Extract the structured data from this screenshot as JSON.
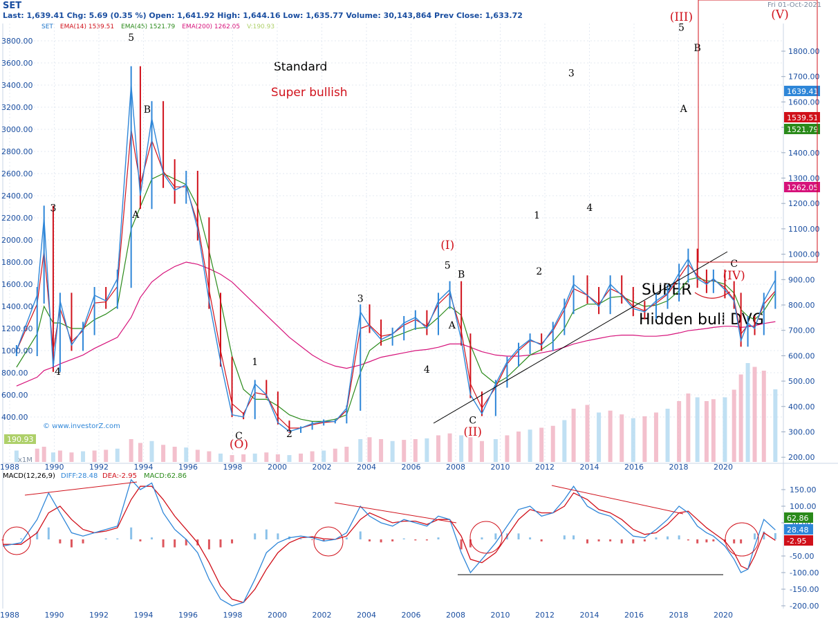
{
  "header": {
    "symbol": "SET",
    "date": "Fri 01-Oct-2021",
    "quote_line": "Last: 1,639.41  Chg: 5.69 (0.35 %)  Open: 1,641.92  High: 1,644.16  Low: 1,635.77  Volume: 30,143,864  Prev Close: 1,633.72",
    "legend": [
      {
        "label": "SET",
        "color": "#1a73c9"
      },
      {
        "label": "EMA(14)",
        "value": "1539.51",
        "color": "#d0101a"
      },
      {
        "label": "EMA(45)",
        "value": "1521.79",
        "color": "#2a8a1a"
      },
      {
        "label": "EMA(200)",
        "value": "1262.05",
        "color": "#d6127a"
      },
      {
        "label": "V:190.93",
        "color": "#aed06a"
      }
    ]
  },
  "watermark": "© www.investorZ.com",
  "volume_badge": "190.93",
  "volume_unit": "x1M",
  "macd_header": {
    "label": "MACD(12,26,9)",
    "diff": "DIFF:28.48",
    "dea": "DEA:-2.95",
    "macd": "MACD:62.86"
  },
  "annotations": {
    "standard": "Standard",
    "super_bullish": "Super bullish",
    "super": "SUPER",
    "hidden_bull": "Hidden bull DVG"
  },
  "chart_data": {
    "type": "line",
    "price_series": {
      "name": "SET",
      "x": [
        1988.6,
        1989.5,
        1989.8,
        1990.2,
        1990.5,
        1991.0,
        1991.5,
        1992.0,
        1992.5,
        1993.0,
        1993.6,
        1994.0,
        1994.5,
        1995.0,
        1995.5,
        1996.0,
        1996.5,
        1997.0,
        1997.5,
        1998.0,
        1998.5,
        1999.0,
        1999.5,
        2000.0,
        2000.5,
        2001.0,
        2001.5,
        2002.0,
        2002.5,
        2003.0,
        2003.6,
        2004.0,
        2004.5,
        2005.0,
        2005.5,
        2006.0,
        2006.5,
        2007.0,
        2007.5,
        2008.0,
        2008.4,
        2008.9,
        2009.5,
        2010.0,
        2010.5,
        2011.0,
        2011.5,
        2012.0,
        2012.5,
        2012.9,
        2013.5,
        2014.0,
        2014.5,
        2015.0,
        2015.5,
        2016.0,
        2016.5,
        2017.0,
        2017.5,
        2017.9,
        2018.3,
        2018.7,
        2019.0,
        2019.5,
        2019.9,
        2020.2,
        2020.5,
        2020.8,
        2021.2,
        2021.7
      ],
      "y": [
        1000,
        1500,
        2200,
        850,
        1450,
        1050,
        1200,
        1500,
        1450,
        1650,
        3400,
        2400,
        3100,
        2600,
        2450,
        2500,
        2100,
        1450,
        900,
        420,
        400,
        700,
        600,
        350,
        270,
        300,
        340,
        360,
        360,
        480,
        1350,
        1220,
        1100,
        1150,
        1250,
        1300,
        1200,
        1450,
        1550,
        1100,
        600,
        430,
        700,
        900,
        1020,
        1100,
        1050,
        1200,
        1400,
        1600,
        1500,
        1400,
        1600,
        1500,
        1380,
        1350,
        1450,
        1520,
        1700,
        1830,
        1650,
        1600,
        1650,
        1550,
        1450,
        1090,
        1250,
        1200,
        1450,
        1639.41
      ]
    },
    "ema14": [
      1000,
      1420,
      1900,
      1000,
      1380,
      1080,
      1180,
      1430,
      1440,
      1580,
      3000,
      2500,
      2900,
      2620,
      2480,
      2480,
      2150,
      1550,
      1000,
      520,
      430,
      620,
      600,
      400,
      300,
      300,
      330,
      350,
      360,
      460,
      1200,
      1230,
      1130,
      1150,
      1230,
      1280,
      1220,
      1420,
      1520,
      1180,
      700,
      480,
      670,
      880,
      1000,
      1090,
      1060,
      1180,
      1370,
      1560,
      1500,
      1420,
      1560,
      1510,
      1400,
      1360,
      1430,
      1510,
      1660,
      1780,
      1680,
      1610,
      1640,
      1570,
      1460,
      1150,
      1230,
      1210,
      1420,
      1539.51
    ],
    "ema45": [
      850,
      1150,
      1400,
      1250,
      1250,
      1200,
      1200,
      1280,
      1330,
      1400,
      2100,
      2300,
      2550,
      2600,
      2550,
      2500,
      2300,
      1900,
      1450,
      950,
      650,
      560,
      560,
      500,
      420,
      380,
      360,
      360,
      380,
      420,
      800,
      1000,
      1080,
      1120,
      1160,
      1200,
      1210,
      1300,
      1400,
      1320,
      1050,
      800,
      700,
      760,
      860,
      960,
      1010,
      1080,
      1200,
      1360,
      1420,
      1420,
      1480,
      1490,
      1440,
      1400,
      1410,
      1450,
      1540,
      1640,
      1660,
      1630,
      1630,
      1600,
      1520,
      1370,
      1310,
      1280,
      1360,
      1521.79
    ],
    "ema200": [
      680,
      760,
      820,
      850,
      880,
      920,
      960,
      1020,
      1070,
      1120,
      1300,
      1480,
      1620,
      1700,
      1760,
      1800,
      1780,
      1740,
      1690,
      1620,
      1520,
      1420,
      1320,
      1220,
      1120,
      1040,
      960,
      900,
      860,
      840,
      870,
      900,
      940,
      960,
      980,
      1000,
      1010,
      1030,
      1060,
      1060,
      1030,
      990,
      960,
      950,
      950,
      960,
      980,
      1000,
      1030,
      1060,
      1090,
      1110,
      1130,
      1140,
      1140,
      1130,
      1130,
      1140,
      1160,
      1180,
      1190,
      1200,
      1210,
      1220,
      1220,
      1210,
      1215,
      1225,
      1245,
      1262.05
    ],
    "volume": [
      30,
      35,
      40,
      25,
      30,
      25,
      28,
      30,
      32,
      35,
      60,
      50,
      55,
      45,
      40,
      38,
      32,
      28,
      22,
      18,
      20,
      22,
      25,
      20,
      18,
      22,
      28,
      30,
      35,
      40,
      60,
      65,
      60,
      55,
      58,
      60,
      62,
      70,
      75,
      70,
      65,
      55,
      60,
      70,
      80,
      85,
      90,
      95,
      110,
      140,
      150,
      130,
      135,
      125,
      115,
      120,
      130,
      140,
      160,
      180,
      170,
      160,
      165,
      170,
      190,
      230,
      260,
      250,
      240,
      190.93
    ],
    "price_axis_left": [
      "3800.00",
      "3600.00",
      "3400.00",
      "3200.00",
      "3000.00",
      "2800.00",
      "2600.00",
      "2400.00",
      "2200.00",
      "2000.00",
      "1800.00",
      "1600.00",
      "1400.00",
      "1200.00",
      "1000.00",
      "800.00",
      "600.00",
      "400.00"
    ],
    "price_axis_right": [
      "1800.00",
      "1700.00",
      "1600.00",
      "1500.00",
      "1400.00",
      "1300.00",
      "1200.00",
      "1100.00",
      "1000.00",
      "900.00",
      "800.00",
      "700.00",
      "600.00",
      "500.00",
      "400.00",
      "300.00",
      "200.00"
    ],
    "right_badges": [
      {
        "text": "1639.41",
        "color": "#2e86d8"
      },
      {
        "text": "1539.51",
        "color": "#d0101a"
      },
      {
        "text": "1521.79",
        "color": "#2a8a1a"
      },
      {
        "text": "1262.05",
        "color": "#d6127a"
      }
    ],
    "years": [
      "1988",
      "1990",
      "1992",
      "1994",
      "1996",
      "1998",
      "2000",
      "2002",
      "2004",
      "2006",
      "2008",
      "2010",
      "2012",
      "2014",
      "2016",
      "2018",
      "2020"
    ],
    "macd": {
      "x": [
        1988.0,
        1988.8,
        1989.5,
        1990.0,
        1990.5,
        1991.0,
        1991.5,
        1992.0,
        1992.5,
        1993.0,
        1993.6,
        1994.0,
        1994.5,
        1995.0,
        1995.5,
        1996.0,
        1996.5,
        1997.0,
        1997.5,
        1998.0,
        1998.5,
        1999.0,
        1999.5,
        2000.0,
        2000.5,
        2001.0,
        2001.5,
        2002.0,
        2002.5,
        2003.0,
        2003.6,
        2004.0,
        2004.5,
        2005.0,
        2005.5,
        2006.0,
        2006.5,
        2007.0,
        2007.5,
        2008.0,
        2008.4,
        2008.9,
        2009.5,
        2010.0,
        2010.5,
        2011.0,
        2011.5,
        2012.0,
        2012.5,
        2012.9,
        2013.5,
        2014.0,
        2014.5,
        2015.0,
        2015.5,
        2016.0,
        2016.5,
        2017.0,
        2017.5,
        2017.9,
        2018.3,
        2018.7,
        2019.0,
        2019.5,
        2019.9,
        2020.2,
        2020.5,
        2020.8,
        2021.2,
        2021.7
      ],
      "diff": [
        -20,
        -10,
        60,
        140,
        80,
        20,
        10,
        20,
        30,
        40,
        180,
        150,
        170,
        80,
        30,
        0,
        -40,
        -120,
        -180,
        -200,
        -190,
        -120,
        -40,
        -10,
        5,
        10,
        5,
        -5,
        0,
        20,
        100,
        70,
        50,
        40,
        60,
        50,
        40,
        70,
        60,
        -40,
        -100,
        -60,
        -10,
        40,
        90,
        100,
        70,
        80,
        120,
        160,
        100,
        80,
        70,
        40,
        10,
        5,
        30,
        60,
        100,
        80,
        40,
        20,
        10,
        -20,
        -60,
        -100,
        -90,
        -20,
        60,
        28.48
      ],
      "dea": [
        -15,
        -15,
        20,
        80,
        100,
        60,
        30,
        20,
        25,
        35,
        120,
        160,
        160,
        120,
        70,
        30,
        -10,
        -70,
        -140,
        -180,
        -190,
        -150,
        -90,
        -40,
        -10,
        5,
        8,
        2,
        0,
        10,
        60,
        80,
        65,
        50,
        55,
        55,
        45,
        60,
        60,
        10,
        -60,
        -70,
        -40,
        10,
        60,
        90,
        80,
        80,
        100,
        140,
        120,
        90,
        80,
        60,
        30,
        15,
        20,
        45,
        80,
        85,
        60,
        35,
        20,
        -5,
        -40,
        -80,
        -90,
        -50,
        20,
        -2.95
      ],
      "axis": [
        "150.00",
        "100.00",
        "50.00",
        "-50.00",
        "-100.00",
        "-150.00",
        "-200.00"
      ],
      "badges": [
        {
          "text": "62.86",
          "color": "#2a8a1a"
        },
        {
          "text": "28.48",
          "color": "#2e86d8"
        },
        {
          "text": "-2.95",
          "color": "#d0101a"
        }
      ]
    },
    "wave_labels": [
      {
        "text": "3",
        "year": 1990.2,
        "price": 2260,
        "color": "#000"
      },
      {
        "text": "4",
        "year": 1990.4,
        "price": 780,
        "color": "#000"
      },
      {
        "text": "5",
        "year": 1993.6,
        "price": 3800,
        "color": "#000"
      },
      {
        "text": "A",
        "year": 1993.8,
        "price": 2200,
        "color": "#000"
      },
      {
        "text": "B",
        "year": 1994.3,
        "price": 3150,
        "color": "#000"
      },
      {
        "text": "C",
        "year": 1998.3,
        "price": 200,
        "color": "#000"
      },
      {
        "text": "(O)",
        "year": 1998.3,
        "price": 120,
        "color": "#d0101a"
      },
      {
        "text": "1",
        "year": 1999.0,
        "price": 870,
        "color": "#000"
      },
      {
        "text": "2",
        "year": 2000.5,
        "price": 220,
        "color": "#000"
      },
      {
        "text": "3",
        "year": 2003.6,
        "price": 1440,
        "color": "#000"
      },
      {
        "text": "4",
        "year": 2006.5,
        "price": 800,
        "color": "#000"
      },
      {
        "text": "5",
        "year": 2007.4,
        "price": 1740,
        "color": "#000"
      },
      {
        "text": "(I)",
        "year": 2007.4,
        "price": 1920,
        "color": "#d0101a"
      },
      {
        "text": "A",
        "year": 2007.6,
        "price": 1200,
        "color": "#000"
      },
      {
        "text": "B",
        "year": 2008.0,
        "price": 1660,
        "color": "#000"
      },
      {
        "text": "C",
        "year": 2008.5,
        "price": 340,
        "color": "#000"
      },
      {
        "text": "(II)",
        "year": 2008.5,
        "price": 230,
        "color": "#d0101a"
      },
      {
        "text": "1",
        "year": 2011.3,
        "price": 1140,
        "color": "#000"
      },
      {
        "text": "2",
        "year": 2011.4,
        "price": 920,
        "color": "#000"
      },
      {
        "text": "3",
        "year": 2012.8,
        "price": 1700,
        "color": "#000"
      },
      {
        "text": "4",
        "year": 2013.6,
        "price": 1170,
        "color": "#000"
      },
      {
        "text": "5",
        "year": 2017.6,
        "price": 1880,
        "color": "#000"
      },
      {
        "text": "(III)",
        "year": 2017.6,
        "price": 1920,
        "color": "#d0101a"
      },
      {
        "text": "A",
        "year": 2017.7,
        "price": 1560,
        "color": "#000"
      },
      {
        "text": "B",
        "year": 2018.3,
        "price": 1800,
        "color": "#000"
      },
      {
        "text": "C",
        "year": 2019.9,
        "price": 950,
        "color": "#000"
      },
      {
        "text": "(IV)",
        "year": 2019.9,
        "price": 900,
        "color": "#d0101a"
      },
      {
        "text": "(V)",
        "year": 2021.9,
        "price": 1930,
        "color": "#d0101a"
      }
    ]
  }
}
